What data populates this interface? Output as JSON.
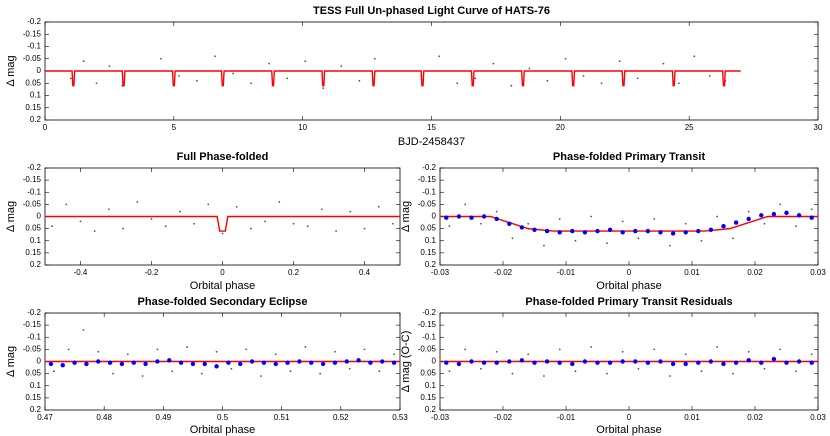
{
  "chart_data": [
    {
      "type": "scatter",
      "title": "TESS Full Un-phased Light Curve of HATS-76",
      "xlabel": "BJD-2458437",
      "ylabel": "Δ mag",
      "xlim": [
        0,
        30
      ],
      "ylim": [
        -0.2,
        0.2
      ],
      "y_inverted": true,
      "xticks": [
        0,
        5,
        10,
        15,
        20,
        25,
        30
      ],
      "yticks": [
        -0.2,
        -0.15,
        -0.1,
        -0.05,
        0,
        0.05,
        0.1,
        0.15,
        0.2
      ],
      "series": [
        {
          "style": "points",
          "color": "#555555",
          "x": [
            1.0,
            1.5,
            2.0,
            2.5,
            3.0,
            4.5,
            5.2,
            5.9,
            6.6,
            7.3,
            8.0,
            8.7,
            9.4,
            10.1,
            10.8,
            11.5,
            12.2,
            12.8,
            14.6,
            15.3,
            16.0,
            16.7,
            17.4,
            18.1,
            18.8,
            19.5,
            20.2,
            20.9,
            21.6,
            22.3,
            23.0,
            24.0,
            24.6,
            25.2,
            25.8,
            26.4
          ],
          "values": [
            0.03,
            -0.04,
            0.05,
            -0.02,
            0.06,
            -0.05,
            0.02,
            0.04,
            -0.06,
            0.01,
            0.05,
            -0.03,
            0.03,
            -0.04,
            0.07,
            -0.02,
            0.04,
            -0.05,
            0.02,
            -0.06,
            0.05,
            0.03,
            -0.03,
            0.06,
            -0.01,
            0.04,
            -0.05,
            0.02,
            0.05,
            -0.04,
            0.03,
            -0.03,
            0.05,
            -0.06,
            0.02,
            0.04
          ]
        },
        {
          "style": "line",
          "color": "#ff0000",
          "x": [
            0,
            1.05,
            1.08,
            1.12,
            1.15,
            3.0,
            3.03,
            3.07,
            3.1,
            4.95,
            4.98,
            5.02,
            5.05,
            6.85,
            6.88,
            6.92,
            6.95,
            8.8,
            8.83,
            8.87,
            8.9,
            10.75,
            10.78,
            10.82,
            10.85,
            12.7,
            12.73,
            12.77,
            12.8,
            14.6,
            14.63,
            14.67,
            14.7,
            16.55,
            16.58,
            16.62,
            16.65,
            18.5,
            18.53,
            18.57,
            18.6,
            20.45,
            20.48,
            20.52,
            20.55,
            22.4,
            22.43,
            22.47,
            22.5,
            24.35,
            24.38,
            24.42,
            24.45,
            26.3,
            26.33,
            26.37,
            26.4,
            27
          ],
          "values": [
            0,
            0,
            0.06,
            0.06,
            0,
            0,
            0.06,
            0.06,
            0,
            0,
            0.06,
            0.06,
            0,
            0,
            0.06,
            0.06,
            0,
            0,
            0.06,
            0.06,
            0,
            0,
            0.06,
            0.06,
            0,
            0,
            0.06,
            0.06,
            0,
            0,
            0.06,
            0.06,
            0,
            0,
            0.06,
            0.06,
            0,
            0,
            0.06,
            0.06,
            0,
            0,
            0.06,
            0.06,
            0,
            0,
            0.06,
            0.06,
            0,
            0,
            0.06,
            0.06,
            0,
            0,
            0.06,
            0.06,
            0,
            0
          ]
        }
      ]
    },
    {
      "type": "scatter",
      "title": "Full Phase-folded",
      "xlabel": "Orbital phase",
      "ylabel": "Δ mag",
      "xlim": [
        -0.5,
        0.5
      ],
      "ylim": [
        -0.2,
        0.2
      ],
      "y_inverted": true,
      "xticks": [
        -0.4,
        -0.2,
        0,
        0.2,
        0.4
      ],
      "yticks": [
        -0.2,
        -0.15,
        -0.1,
        -0.05,
        0,
        0.05,
        0.1,
        0.15,
        0.2
      ],
      "series": [
        {
          "style": "points",
          "color": "#555555",
          "x": [
            -0.48,
            -0.44,
            -0.4,
            -0.36,
            -0.32,
            -0.28,
            -0.24,
            -0.2,
            -0.16,
            -0.12,
            -0.08,
            -0.04,
            0,
            0.04,
            0.08,
            0.12,
            0.16,
            0.2,
            0.24,
            0.28,
            0.32,
            0.36,
            0.4,
            0.44,
            0.48
          ],
          "values": [
            0.04,
            -0.05,
            0.02,
            0.06,
            -0.03,
            0.05,
            -0.06,
            0.01,
            0.04,
            -0.02,
            0.03,
            -0.05,
            0.07,
            -0.04,
            0.05,
            0.02,
            -0.06,
            0.03,
            0.04,
            -0.03,
            0.06,
            -0.02,
            0.05,
            -0.04,
            0.03
          ]
        },
        {
          "style": "line",
          "color": "#ff0000",
          "x": [
            -0.5,
            -0.015,
            -0.008,
            0.008,
            0.015,
            0.5
          ],
          "values": [
            0,
            0,
            0.06,
            0.06,
            0,
            0
          ]
        }
      ]
    },
    {
      "type": "scatter",
      "title": "Phase-folded Primary Transit",
      "xlabel": "Orbital phase",
      "ylabel": "Δ mag",
      "xlim": [
        -0.03,
        0.03
      ],
      "ylim": [
        -0.2,
        0.2
      ],
      "y_inverted": true,
      "xticks": [
        -0.03,
        -0.02,
        -0.01,
        0,
        0.01,
        0.02,
        0.03
      ],
      "yticks": [
        -0.2,
        -0.15,
        -0.1,
        -0.05,
        0,
        0.05,
        0.1,
        0.15,
        0.2
      ],
      "series": [
        {
          "style": "points",
          "color": "#555555",
          "x": [
            -0.0285,
            -0.026,
            -0.0235,
            -0.021,
            -0.0185,
            -0.016,
            -0.0135,
            -0.011,
            -0.0085,
            -0.006,
            -0.0035,
            -0.001,
            0.0015,
            0.004,
            0.0065,
            0.009,
            0.0115,
            0.014,
            0.0165,
            0.019,
            0.0215,
            0.024,
            0.0265,
            0.029
          ],
          "values": [
            0.04,
            -0.05,
            0.03,
            -0.02,
            0.09,
            0.03,
            0.12,
            0.01,
            0.1,
            0,
            0.11,
            0.02,
            0.09,
            0.01,
            0.12,
            0.03,
            0.1,
            0,
            0.09,
            -0.02,
            0.03,
            -0.05,
            0.04,
            -0.03
          ]
        },
        {
          "style": "line",
          "color": "#ff0000",
          "x": [
            -0.03,
            -0.022,
            -0.016,
            -0.012,
            0.012,
            0.016,
            0.022,
            0.03
          ],
          "values": [
            0,
            0,
            0.05,
            0.06,
            0.06,
            0.05,
            0,
            0
          ]
        },
        {
          "style": "binned",
          "color": "#0000ff",
          "x": [
            -0.029,
            -0.027,
            -0.025,
            -0.023,
            -0.021,
            -0.019,
            -0.017,
            -0.015,
            -0.013,
            -0.011,
            -0.009,
            -0.007,
            -0.005,
            -0.003,
            -0.001,
            0.001,
            0.003,
            0.005,
            0.007,
            0.009,
            0.011,
            0.013,
            0.015,
            0.017,
            0.019,
            0.021,
            0.023,
            0.025,
            0.027,
            0.029
          ],
          "values": [
            0.005,
            0,
            0.005,
            0,
            0.01,
            0.03,
            0.045,
            0.055,
            0.06,
            0.065,
            0.06,
            0.065,
            0.06,
            0.055,
            0.065,
            0.06,
            0.06,
            0.065,
            0.07,
            0.065,
            0.06,
            0.055,
            0.04,
            0.025,
            0.01,
            -0.005,
            -0.01,
            -0.015,
            -0.005,
            0.005
          ]
        }
      ]
    },
    {
      "type": "scatter",
      "title": "Phase-folded Secondary Eclipse",
      "xlabel": "Orbital phase",
      "ylabel": "Δ mag",
      "xlim": [
        0.47,
        0.53
      ],
      "ylim": [
        -0.2,
        0.2
      ],
      "y_inverted": true,
      "xticks": [
        0.47,
        0.48,
        0.49,
        0.5,
        0.51,
        0.52,
        0.53
      ],
      "yticks": [
        -0.2,
        -0.15,
        -0.1,
        -0.05,
        0,
        0.05,
        0.1,
        0.15,
        0.2
      ],
      "series": [
        {
          "style": "points",
          "color": "#555555",
          "x": [
            0.4715,
            0.474,
            0.4765,
            0.479,
            0.4815,
            0.484,
            0.4865,
            0.489,
            0.4915,
            0.494,
            0.4965,
            0.499,
            0.5015,
            0.504,
            0.5065,
            0.509,
            0.5115,
            0.514,
            0.5165,
            0.519,
            0.5215,
            0.524,
            0.5265,
            0.529
          ],
          "values": [
            0.04,
            -0.05,
            -0.13,
            -0.04,
            0.05,
            -0.03,
            0.06,
            -0.05,
            0.04,
            -0.06,
            0.05,
            -0.04,
            0.03,
            -0.05,
            0.06,
            -0.03,
            0.04,
            -0.06,
            0.05,
            -0.04,
            0.03,
            -0.05,
            0.04,
            -0.03
          ]
        },
        {
          "style": "line",
          "color": "#ff0000",
          "x": [
            0.47,
            0.53
          ],
          "values": [
            0,
            0
          ]
        },
        {
          "style": "binned",
          "color": "#0000ff",
          "x": [
            0.471,
            0.473,
            0.475,
            0.477,
            0.479,
            0.481,
            0.483,
            0.485,
            0.487,
            0.489,
            0.491,
            0.493,
            0.495,
            0.497,
            0.499,
            0.501,
            0.503,
            0.505,
            0.507,
            0.509,
            0.511,
            0.513,
            0.515,
            0.517,
            0.519,
            0.521,
            0.523,
            0.525,
            0.527,
            0.529
          ],
          "values": [
            0.01,
            0.015,
            0.005,
            0.01,
            0,
            0.005,
            0.01,
            0.005,
            0.01,
            0,
            -0.005,
            0.005,
            0.01,
            0.01,
            0.02,
            0.005,
            0.01,
            0,
            0.005,
            0.01,
            0.005,
            0,
            0.005,
            0.01,
            0.005,
            0,
            -0.005,
            0.005,
            0,
            0.005
          ]
        }
      ]
    },
    {
      "type": "scatter",
      "title": "Phase-folded Primary Transit Residuals",
      "xlabel": "Orbital phase",
      "ylabel": "Δ mag (O-C)",
      "xlim": [
        -0.03,
        0.03
      ],
      "ylim": [
        -0.2,
        0.2
      ],
      "y_inverted": true,
      "xticks": [
        -0.03,
        -0.02,
        -0.01,
        0,
        0.01,
        0.02,
        0.03
      ],
      "yticks": [
        -0.2,
        -0.15,
        -0.1,
        -0.05,
        0,
        0.05,
        0.1,
        0.15,
        0.2
      ],
      "series": [
        {
          "style": "points",
          "color": "#555555",
          "x": [
            -0.0285,
            -0.026,
            -0.0235,
            -0.021,
            -0.0185,
            -0.016,
            -0.0135,
            -0.011,
            -0.0085,
            -0.006,
            -0.0035,
            -0.001,
            0.0015,
            0.004,
            0.0065,
            0.009,
            0.0115,
            0.014,
            0.0165,
            0.019,
            0.0215,
            0.024,
            0.0265,
            0.029
          ],
          "values": [
            0.04,
            -0.05,
            0.03,
            -0.04,
            0.05,
            -0.03,
            0.06,
            -0.05,
            0.04,
            -0.06,
            0.05,
            -0.04,
            0.03,
            -0.05,
            0.06,
            -0.03,
            0.04,
            -0.06,
            0.05,
            -0.04,
            0.03,
            -0.05,
            0.04,
            -0.03
          ]
        },
        {
          "style": "line",
          "color": "#ff0000",
          "x": [
            -0.03,
            0.03
          ],
          "values": [
            0,
            0
          ]
        },
        {
          "style": "binned",
          "color": "#0000ff",
          "x": [
            -0.029,
            -0.027,
            -0.025,
            -0.023,
            -0.021,
            -0.019,
            -0.017,
            -0.015,
            -0.013,
            -0.011,
            -0.009,
            -0.007,
            -0.005,
            -0.003,
            -0.001,
            0.001,
            0.003,
            0.005,
            0.007,
            0.009,
            0.011,
            0.013,
            0.015,
            0.017,
            0.019,
            0.021,
            0.023,
            0.025,
            0.027,
            0.029
          ],
          "values": [
            0.005,
            0.01,
            0,
            0.005,
            0.005,
            0,
            -0.005,
            0.005,
            0,
            0.005,
            0.01,
            0,
            0.005,
            0.005,
            0,
            0,
            0.005,
            0,
            0.01,
            0.01,
            0.005,
            0,
            0.01,
            0.005,
            -0.005,
            0.005,
            -0.01,
            0.005,
            0,
            0.005
          ]
        }
      ]
    }
  ]
}
